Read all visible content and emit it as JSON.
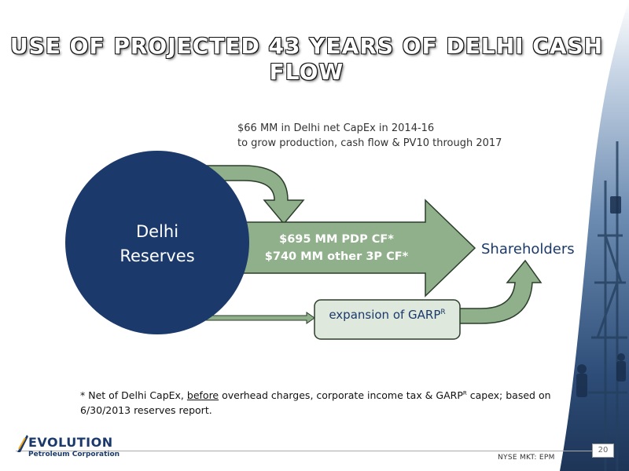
{
  "title": "USE OF PROJECTED 43 YEARS OF DELHI CASH FLOW",
  "capex_note": {
    "line1": "$66 MM in Delhi net CapEx in 2014-16",
    "line2": "to grow production, cash flow & PV10 through 2017"
  },
  "nodes": {
    "reserves_line1": "Delhi",
    "reserves_line2": "Reserves",
    "flow_line1": "$695 MM PDP CF*",
    "flow_line2": "$740 MM other 3P CF*",
    "shareholders": "Shareholders",
    "garp_text": "expansion of GARP",
    "garp_sup": "R"
  },
  "footnote": {
    "part1": "* Net of Delhi CapEx, ",
    "underlined": "before",
    "part2": " overhead charges, corporate income tax & GARP",
    "sup": "R",
    "part3": " capex; based on 6/30/2013 reserves report."
  },
  "logo": {
    "word": "EVOLUTION",
    "sub": "Petroleum Corporation"
  },
  "ticker": "NYSE MKT: EPM",
  "page_number": "20",
  "colors": {
    "navy": "#1b3a6b",
    "arrow_green": "#8fb08a",
    "arrow_dark": "#2b3d2b",
    "box_fill": "#dfe8dc",
    "title_fill": "#ffffff"
  }
}
